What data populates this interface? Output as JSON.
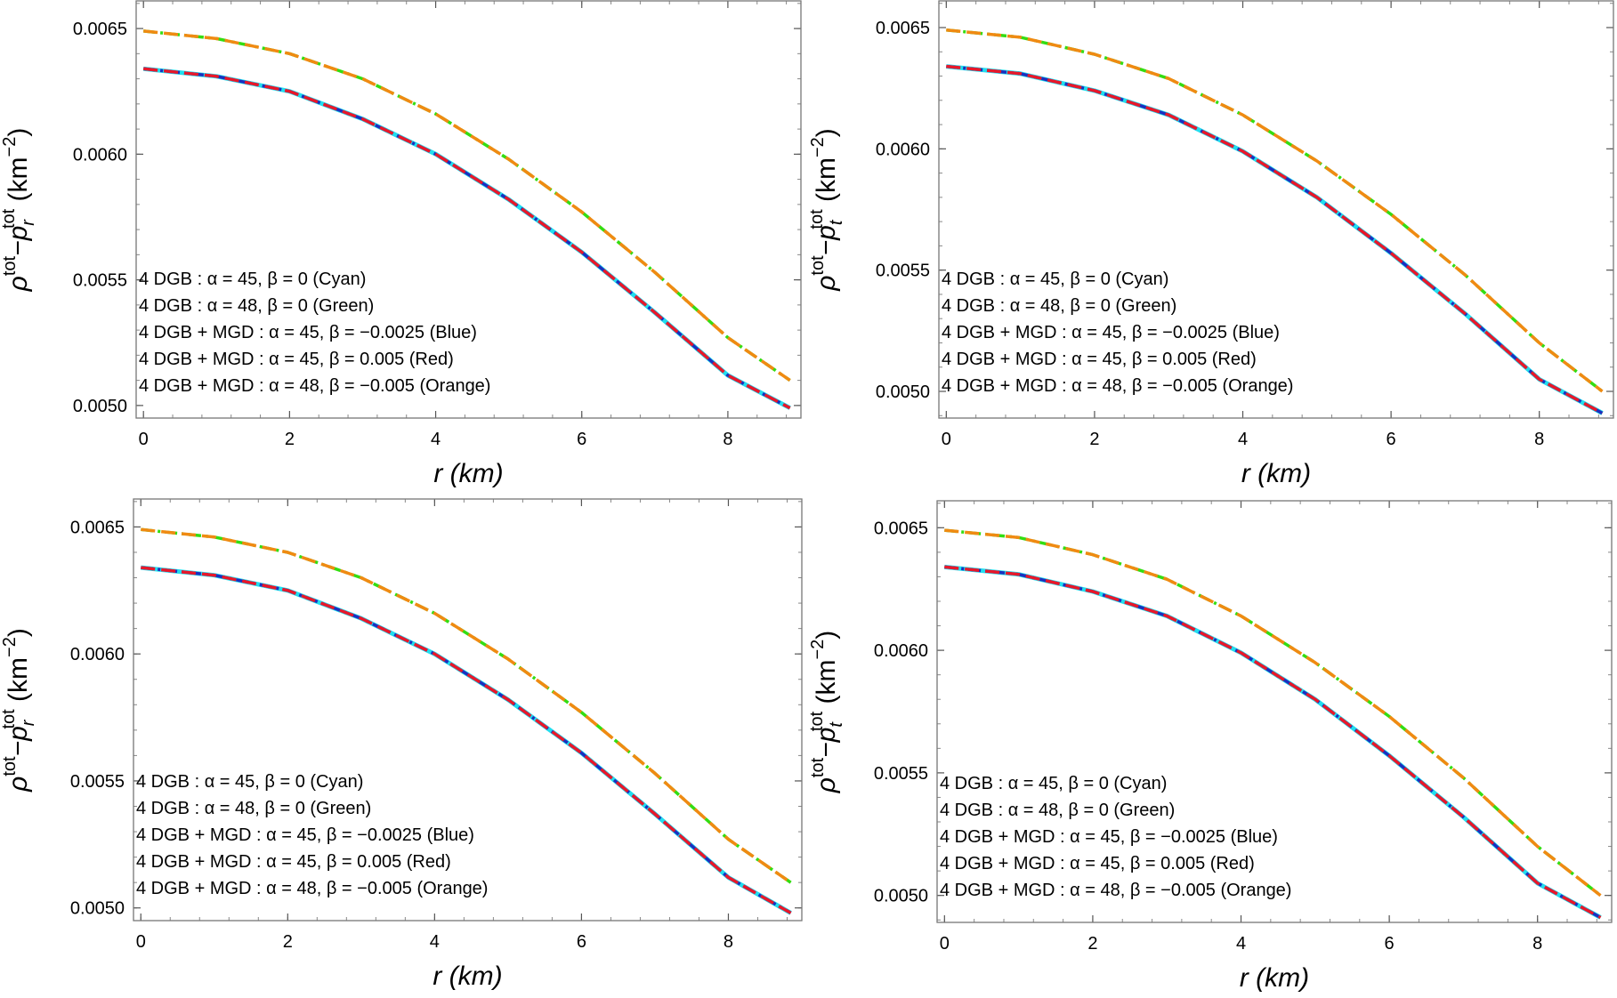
{
  "charts": [
    {
      "ylabel": {
        "pre": "ρ",
        "sup1": "tot",
        "mid": "−p",
        "sub": "r",
        "sup2": "tot",
        "unit": " (km",
        "unit_sup": "−2",
        "close": ")"
      },
      "xlabel": {
        "var": "r",
        "unit": " (km)"
      }
    },
    {
      "ylabel": {
        "pre": "ρ",
        "sup1": "tot",
        "mid": "−p",
        "sub": "t",
        "sup2": "tot",
        "unit": " (km",
        "unit_sup": "−2",
        "close": ")"
      },
      "xlabel": {
        "var": "r",
        "unit": " (km)"
      }
    },
    {
      "ylabel": {
        "pre": "ρ",
        "sup1": "tot",
        "mid": "−p",
        "sub": "r",
        "sup2": "tot",
        "unit": " (km",
        "unit_sup": "−2",
        "close": ")"
      },
      "xlabel": {
        "var": "r",
        "unit": " (km)"
      }
    },
    {
      "ylabel": {
        "pre": "ρ",
        "sup1": "tot",
        "mid": "−p",
        "sub": "t",
        "sup2": "tot",
        "unit": " (km",
        "unit_sup": "−2",
        "close": ")"
      },
      "xlabel": {
        "var": "r",
        "unit": " (km)"
      }
    }
  ],
  "chart_data": [
    {
      "type": "line",
      "xlabel": "r (km)",
      "ylabel": "ρ^tot − p_r^tot (km^−2)",
      "xlim": [
        -0.1,
        9.0
      ],
      "ylim": [
        0.00495,
        0.00661
      ],
      "xticks": [
        "0",
        "2",
        "4",
        "6",
        "8"
      ],
      "yticks": [
        "0.0050",
        "0.0055",
        "0.0060",
        "0.0065"
      ],
      "grid": false,
      "legend_position": "bottom-left",
      "series": [
        {
          "name": "4 DGB : α = 45, β = 0 (Cyan)",
          "color": "#22ddee",
          "dash": "solid",
          "x": [
            0,
            1,
            2,
            3,
            4,
            5,
            6,
            7,
            8,
            8.85
          ],
          "y": [
            0.00634,
            0.00631,
            0.00625,
            0.00614,
            0.006,
            0.00582,
            0.00561,
            0.00537,
            0.00512,
            0.00499
          ]
        },
        {
          "name": "4 DGB : α = 48, β = 0 (Green)",
          "color": "#33dd11",
          "dash": "dashdot",
          "x": [
            0,
            1,
            2,
            3,
            4,
            5,
            6,
            7,
            8,
            8.85
          ],
          "y": [
            0.00649,
            0.00646,
            0.0064,
            0.0063,
            0.00616,
            0.00598,
            0.00577,
            0.00553,
            0.00527,
            0.0051
          ]
        },
        {
          "name": "4 DGB + MGD : α = 45, β = −0.0025 (Blue)",
          "color": "#1c2fbe",
          "dash": "dashdot",
          "x": [
            0,
            1,
            2,
            3,
            4,
            5,
            6,
            7,
            8,
            8.85
          ],
          "y": [
            0.00634,
            0.00631,
            0.00625,
            0.00614,
            0.006,
            0.00582,
            0.00561,
            0.00537,
            0.00512,
            0.00499
          ]
        },
        {
          "name": "4 DGB + MGD : α = 45, β = 0.005 (Red)",
          "color": "#e8182a",
          "dash": "dashed",
          "x": [
            0,
            1,
            2,
            3,
            4,
            5,
            6,
            7,
            8,
            8.85
          ],
          "y": [
            0.00634,
            0.00631,
            0.00625,
            0.00614,
            0.006,
            0.00582,
            0.00561,
            0.00537,
            0.00512,
            0.00499
          ]
        },
        {
          "name": "4 DGB + MGD : α = 48, β = −0.005 (Orange)",
          "color": "#f08a12",
          "dash": "dashed",
          "x": [
            0,
            1,
            2,
            3,
            4,
            5,
            6,
            7,
            8,
            8.85
          ],
          "y": [
            0.00649,
            0.00646,
            0.0064,
            0.0063,
            0.00616,
            0.00598,
            0.00577,
            0.00553,
            0.00527,
            0.0051
          ]
        }
      ]
    },
    {
      "type": "line",
      "xlabel": "r (km)",
      "ylabel": "ρ^tot − p_t^tot (km^−2)",
      "xlim": [
        -0.1,
        9.0
      ],
      "ylim": [
        0.00489,
        0.00661
      ],
      "xticks": [
        "0",
        "2",
        "4",
        "6",
        "8"
      ],
      "yticks": [
        "0.0050",
        "0.0055",
        "0.0060",
        "0.0065"
      ],
      "grid": false,
      "legend_position": "bottom-left",
      "series": [
        {
          "name": "4 DGB : α = 45, β = 0 (Cyan)",
          "color": "#22ddee",
          "dash": "solid",
          "x": [
            0,
            1,
            2,
            3,
            4,
            5,
            6,
            7,
            8,
            8.85
          ],
          "y": [
            0.00634,
            0.00631,
            0.00624,
            0.00614,
            0.00599,
            0.0058,
            0.00557,
            0.00532,
            0.00505,
            0.00491
          ]
        },
        {
          "name": "4 DGB : α = 48, β = 0 (Green)",
          "color": "#33dd11",
          "dash": "dashdot",
          "x": [
            0,
            1,
            2,
            3,
            4,
            5,
            6,
            7,
            8,
            8.85
          ],
          "y": [
            0.00649,
            0.00646,
            0.00639,
            0.00629,
            0.00614,
            0.00595,
            0.00573,
            0.00548,
            0.0052,
            0.005
          ]
        },
        {
          "name": "4 DGB + MGD : α = 45, β = −0.0025 (Blue)",
          "color": "#1c2fbe",
          "dash": "dashdot",
          "x": [
            0,
            1,
            2,
            3,
            4,
            5,
            6,
            7,
            8,
            8.85
          ],
          "y": [
            0.00634,
            0.00631,
            0.00624,
            0.00614,
            0.00599,
            0.0058,
            0.00557,
            0.00532,
            0.00505,
            0.00491
          ]
        },
        {
          "name": "4 DGB + MGD : α = 45, β = 0.005 (Red)",
          "color": "#e8182a",
          "dash": "dashed",
          "x": [
            0,
            1,
            2,
            3,
            4,
            5,
            6,
            7,
            8,
            8.85
          ],
          "y": [
            0.00634,
            0.00631,
            0.00624,
            0.00614,
            0.00599,
            0.0058,
            0.00557,
            0.00532,
            0.00505,
            0.00491
          ]
        },
        {
          "name": "4 DGB + MGD : α = 48, β = −0.005 (Orange)",
          "color": "#f08a12",
          "dash": "dashed",
          "x": [
            0,
            1,
            2,
            3,
            4,
            5,
            6,
            7,
            8,
            8.85
          ],
          "y": [
            0.00649,
            0.00646,
            0.00639,
            0.00629,
            0.00614,
            0.00595,
            0.00573,
            0.00548,
            0.0052,
            0.005
          ]
        }
      ]
    },
    {
      "type": "line",
      "xlabel": "r (km)",
      "ylabel": "ρ^tot − p_r^tot (km^−2)",
      "xlim": [
        -0.1,
        9.0
      ],
      "ylim": [
        0.00495,
        0.00661
      ],
      "xticks": [
        "0",
        "2",
        "4",
        "6",
        "8"
      ],
      "yticks": [
        "0.0050",
        "0.0055",
        "0.0060",
        "0.0065"
      ],
      "grid": false,
      "legend_position": "bottom-left",
      "series": [
        {
          "name": "4 DGB : α = 45, β = 0 (Cyan)",
          "color": "#22ddee",
          "dash": "solid",
          "x": [
            0,
            1,
            2,
            3,
            4,
            5,
            6,
            7,
            8,
            8.85
          ],
          "y": [
            0.00634,
            0.00631,
            0.00625,
            0.00614,
            0.006,
            0.00582,
            0.00561,
            0.00537,
            0.00512,
            0.00498
          ]
        },
        {
          "name": "4 DGB : α = 48, β = 0 (Green)",
          "color": "#33dd11",
          "dash": "dashdot",
          "x": [
            0,
            1,
            2,
            3,
            4,
            5,
            6,
            7,
            8,
            8.85
          ],
          "y": [
            0.00649,
            0.00646,
            0.0064,
            0.0063,
            0.00616,
            0.00598,
            0.00577,
            0.00553,
            0.00527,
            0.0051
          ]
        },
        {
          "name": "4 DGB + MGD : α = 45, β = −0.0025 (Blue)",
          "color": "#1c2fbe",
          "dash": "dashdot",
          "x": [
            0,
            1,
            2,
            3,
            4,
            5,
            6,
            7,
            8,
            8.85
          ],
          "y": [
            0.00634,
            0.00631,
            0.00625,
            0.00614,
            0.006,
            0.00582,
            0.00561,
            0.00537,
            0.00512,
            0.00498
          ]
        },
        {
          "name": "4 DGB + MGD : α = 45, β = 0.005 (Red)",
          "color": "#e8182a",
          "dash": "dashed",
          "x": [
            0,
            1,
            2,
            3,
            4,
            5,
            6,
            7,
            8,
            8.85
          ],
          "y": [
            0.00634,
            0.00631,
            0.00625,
            0.00614,
            0.006,
            0.00582,
            0.00561,
            0.00537,
            0.00512,
            0.00498
          ]
        },
        {
          "name": "4 DGB + MGD : α = 48, β = −0.005 (Orange)",
          "color": "#f08a12",
          "dash": "dashed",
          "x": [
            0,
            1,
            2,
            3,
            4,
            5,
            6,
            7,
            8,
            8.85
          ],
          "y": [
            0.00649,
            0.00646,
            0.0064,
            0.0063,
            0.00616,
            0.00598,
            0.00577,
            0.00553,
            0.00527,
            0.0051
          ]
        }
      ]
    },
    {
      "type": "line",
      "xlabel": "r (km)",
      "ylabel": "ρ^tot − p_t^tot (km^−2)",
      "xlim": [
        -0.1,
        9.0
      ],
      "ylim": [
        0.00489,
        0.00661
      ],
      "xticks": [
        "0",
        "2",
        "4",
        "6",
        "8"
      ],
      "yticks": [
        "0.0050",
        "0.0055",
        "0.0060",
        "0.0065"
      ],
      "grid": false,
      "legend_position": "bottom-left",
      "series": [
        {
          "name": "4 DGB : α = 45, β = 0 (Cyan)",
          "color": "#22ddee",
          "dash": "solid",
          "x": [
            0,
            1,
            2,
            3,
            4,
            5,
            6,
            7,
            8,
            8.85
          ],
          "y": [
            0.00634,
            0.00631,
            0.00624,
            0.00614,
            0.00599,
            0.0058,
            0.00557,
            0.00532,
            0.00505,
            0.00491
          ]
        },
        {
          "name": "4 DGB : α = 48, β = 0 (Green)",
          "color": "#33dd11",
          "dash": "dashdot",
          "x": [
            0,
            1,
            2,
            3,
            4,
            5,
            6,
            7,
            8,
            8.85
          ],
          "y": [
            0.00649,
            0.00646,
            0.00639,
            0.00629,
            0.00614,
            0.00595,
            0.00573,
            0.00548,
            0.0052,
            0.005
          ]
        },
        {
          "name": "4 DGB + MGD : α = 45, β = −0.0025 (Blue)",
          "color": "#1c2fbe",
          "dash": "dashdot",
          "x": [
            0,
            1,
            2,
            3,
            4,
            5,
            6,
            7,
            8,
            8.85
          ],
          "y": [
            0.00634,
            0.00631,
            0.00624,
            0.00614,
            0.00599,
            0.0058,
            0.00557,
            0.00532,
            0.00505,
            0.00491
          ]
        },
        {
          "name": "4 DGB + MGD : α = 45, β = 0.005 (Red)",
          "color": "#e8182a",
          "dash": "dashed",
          "x": [
            0,
            1,
            2,
            3,
            4,
            5,
            6,
            7,
            8,
            8.85
          ],
          "y": [
            0.00634,
            0.00631,
            0.00624,
            0.00614,
            0.00599,
            0.0058,
            0.00557,
            0.00532,
            0.00505,
            0.00491
          ]
        },
        {
          "name": "4 DGB + MGD : α = 48, β = −0.005 (Orange)",
          "color": "#f08a12",
          "dash": "dashed",
          "x": [
            0,
            1,
            2,
            3,
            4,
            5,
            6,
            7,
            8,
            8.85
          ],
          "y": [
            0.00649,
            0.00646,
            0.00639,
            0.00629,
            0.00614,
            0.00595,
            0.00573,
            0.00548,
            0.0052,
            0.005
          ]
        }
      ]
    }
  ]
}
